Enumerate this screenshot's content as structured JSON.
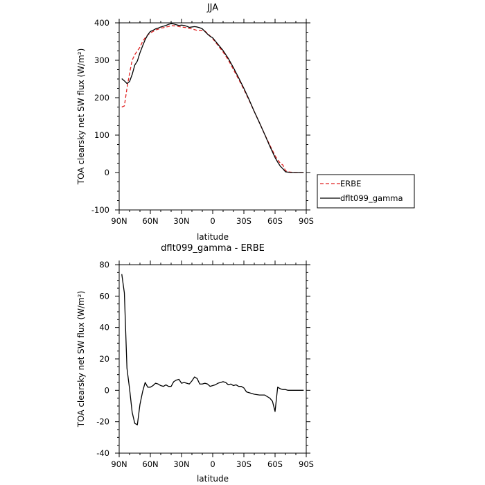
{
  "chart_data": [
    {
      "type": "line",
      "title": "JJA",
      "xlabel": "latitude",
      "ylabel": "TOA clearsky net SW flux (W/m²)",
      "xlim": [
        90,
        -90
      ],
      "ylim": [
        -100,
        400
      ],
      "x_ticks": [
        90,
        60,
        30,
        0,
        -30,
        -60,
        -90
      ],
      "x_tick_labels": [
        "90N",
        "60N",
        "30N",
        "0",
        "30S",
        "60S",
        "90S"
      ],
      "y_ticks": [
        -100,
        0,
        100,
        200,
        300,
        400
      ],
      "legend": "right-outside",
      "series": [
        {
          "name": "ERBE",
          "color": "#e02020",
          "style": "dashed",
          "x": [
            87.5,
            85,
            82.5,
            80,
            77.5,
            75,
            72.5,
            70,
            67.5,
            65,
            62.5,
            60,
            57.5,
            55,
            52.5,
            50,
            47.5,
            45,
            42.5,
            40,
            37.5,
            35,
            32.5,
            30,
            27.5,
            25,
            22.5,
            20,
            17.5,
            15,
            12.5,
            10,
            7.5,
            5,
            2.5,
            0,
            -5,
            -10,
            -15,
            -20,
            -25,
            -30,
            -35,
            -40,
            -45,
            -50,
            -55,
            -60,
            -62.5,
            -65,
            -67.5,
            -70,
            -72.5,
            -75,
            -80,
            -85,
            -87.5
          ],
          "y": [
            175,
            178,
            225,
            265,
            300,
            315,
            325,
            335,
            350,
            360,
            368,
            373,
            377,
            381,
            383,
            386,
            387,
            389,
            390,
            393,
            392,
            392,
            390,
            389,
            388,
            387,
            385,
            384,
            382,
            380,
            380,
            380,
            378,
            372,
            365,
            358,
            340,
            322,
            301,
            275,
            249,
            222,
            193,
            163,
            133,
            102,
            73,
            45,
            34,
            25,
            20,
            5,
            2,
            1,
            0,
            0,
            0
          ]
        },
        {
          "name": "dflt099_gamma",
          "color": "#000000",
          "style": "solid",
          "x": [
            87.5,
            85,
            82.5,
            80,
            77.5,
            75,
            72.5,
            70,
            67.5,
            65,
            62.5,
            60,
            57.5,
            55,
            52.5,
            50,
            47.5,
            45,
            42.5,
            40,
            37.5,
            35,
            32.5,
            30,
            27.5,
            25,
            22.5,
            20,
            17.5,
            15,
            12.5,
            10,
            7.5,
            5,
            2.5,
            0,
            -5,
            -10,
            -15,
            -20,
            -25,
            -30,
            -35,
            -40,
            -45,
            -50,
            -55,
            -60,
            -62.5,
            -65,
            -67.5,
            -70,
            -72.5,
            -75,
            -80,
            -85,
            -87.5
          ],
          "y": [
            251,
            245,
            238,
            243,
            262,
            287,
            298,
            320,
            338,
            355,
            368,
            377,
            380,
            384,
            386,
            389,
            391,
            393,
            396,
            398,
            397,
            395,
            393,
            394,
            393,
            391,
            388,
            389,
            390,
            389,
            387,
            384,
            377,
            370,
            364,
            360,
            343,
            326,
            305,
            280,
            253,
            225,
            195,
            163,
            133,
            102,
            70,
            40,
            28,
            17,
            10,
            2,
            1,
            0,
            0,
            0,
            0
          ]
        }
      ]
    },
    {
      "type": "line",
      "title": "dflt099_gamma - ERBE",
      "xlabel": "latitude",
      "ylabel": "TOA clearsky net SW flux (W/m²)",
      "xlim": [
        90,
        -90
      ],
      "ylim": [
        -40,
        80
      ],
      "x_ticks": [
        90,
        60,
        30,
        0,
        -30,
        -60,
        -90
      ],
      "x_tick_labels": [
        "90N",
        "60N",
        "30N",
        "0",
        "30S",
        "60S",
        "90S"
      ],
      "y_ticks": [
        -40,
        -20,
        0,
        20,
        40,
        60,
        80
      ],
      "series": [
        {
          "color": "#000000",
          "style": "solid",
          "x": [
            87.5,
            85,
            82.5,
            80,
            77.5,
            75,
            72.5,
            70,
            67.5,
            65,
            62.5,
            60,
            57.5,
            55,
            52.5,
            50,
            47.5,
            45,
            42.5,
            40,
            37.5,
            35,
            32.5,
            30,
            27.5,
            25,
            22.5,
            20,
            17.5,
            15,
            12.5,
            10,
            7.5,
            5,
            2.5,
            0,
            -2.5,
            -5,
            -7.5,
            -10,
            -12.5,
            -15,
            -17.5,
            -20,
            -22.5,
            -25,
            -27.5,
            -30,
            -32.5,
            -35,
            -37.5,
            -40,
            -45,
            -50,
            -55,
            -57.5,
            -60,
            -62.5,
            -65,
            -67.5,
            -70,
            -72.5,
            -75,
            -80,
            -85,
            -87.5
          ],
          "y": [
            74,
            62,
            14,
            1,
            -14,
            -21,
            -22,
            -9,
            -1,
            5,
            2,
            2,
            3,
            4.5,
            4,
            3,
            2.5,
            3.5,
            2.5,
            2.5,
            5.5,
            6.5,
            7,
            4.5,
            5,
            4.5,
            4,
            6,
            8.5,
            7.5,
            4,
            4,
            4.5,
            4,
            2.5,
            3,
            3.5,
            4.5,
            5,
            5.5,
            5,
            3.5,
            4,
            3,
            3.5,
            2.5,
            2.5,
            1.5,
            -1,
            -1.5,
            -2,
            -2.5,
            -3,
            -3,
            -5,
            -7,
            -13.5,
            2,
            1,
            0.5,
            0.5,
            0,
            0,
            0,
            0,
            0
          ]
        }
      ]
    }
  ]
}
